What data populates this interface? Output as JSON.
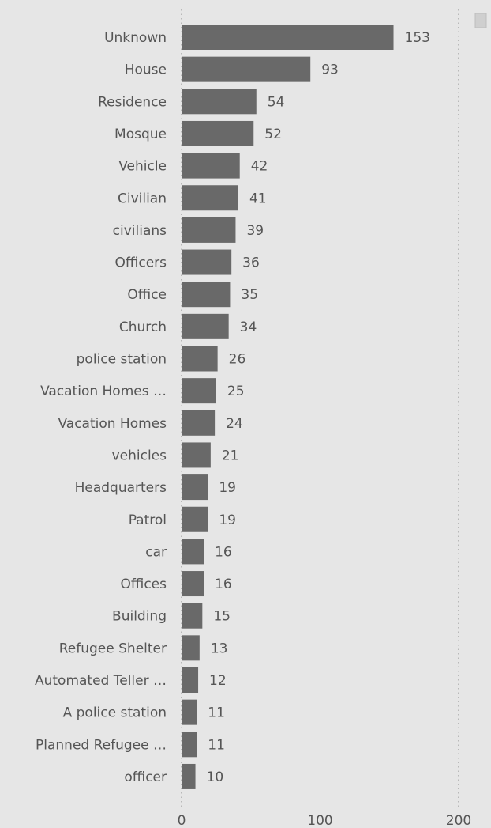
{
  "chart_data": {
    "type": "bar",
    "orientation": "horizontal",
    "categories": [
      "Unknown",
      "House",
      "Residence",
      "Mosque",
      "Vehicle",
      "Civilian",
      "civilians",
      "Officers",
      "Office",
      "Church",
      "police station",
      "Vacation Homes …",
      "Vacation Homes",
      "vehicles",
      "Headquarters",
      "Patrol",
      "car",
      "Offices",
      "Building",
      "Refugee Shelter",
      "Automated Teller …",
      "A police station",
      "Planned Refugee …",
      "officer"
    ],
    "values": [
      153,
      93,
      54,
      52,
      42,
      41,
      39,
      36,
      35,
      34,
      26,
      25,
      24,
      21,
      19,
      19,
      16,
      16,
      15,
      13,
      12,
      11,
      11,
      10
    ],
    "xticks": [
      0,
      100,
      200
    ],
    "xlim": [
      0,
      200
    ],
    "grid": "vertical dotted",
    "bar_color": "#696969",
    "legend_swatch_color": "#cfcfcf",
    "legend": "top-right"
  }
}
